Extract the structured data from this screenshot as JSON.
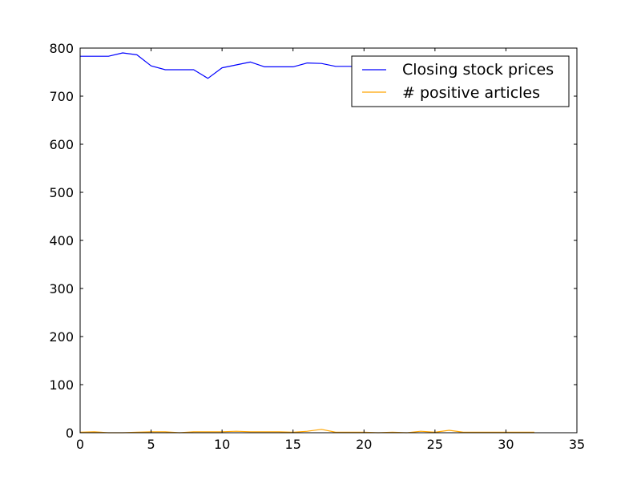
{
  "chart_data": {
    "type": "line",
    "title": "",
    "xlabel": "",
    "ylabel": "",
    "xlim": [
      0,
      35
    ],
    "ylim": [
      0,
      800
    ],
    "xticks": [
      0,
      5,
      10,
      15,
      20,
      25,
      30,
      35
    ],
    "yticks": [
      0,
      100,
      200,
      300,
      400,
      500,
      600,
      700,
      800
    ],
    "grid": false,
    "legend_position": "top-right",
    "series": [
      {
        "name": "Closing stock prices",
        "color": "#0000ff",
        "x": [
          0,
          1,
          2,
          3,
          4,
          5,
          6,
          7,
          8,
          9,
          10,
          11,
          12,
          13,
          14,
          15,
          16,
          17,
          18,
          19,
          20,
          21,
          22,
          23,
          24,
          25,
          26,
          27,
          28,
          29,
          30,
          31,
          32
        ],
        "values": [
          783,
          783,
          783,
          790,
          786,
          763,
          755,
          755,
          755,
          737,
          759,
          765,
          771,
          761,
          761,
          761,
          769,
          768,
          762,
          762,
          761,
          761,
          762,
          761,
          760,
          760,
          758,
          760,
          760,
          760,
          761,
          762,
          763
        ]
      },
      {
        "name": "# positive articles",
        "color": "#ffa500",
        "x": [
          0,
          1,
          2,
          3,
          4,
          5,
          6,
          7,
          8,
          9,
          10,
          11,
          12,
          13,
          14,
          15,
          16,
          17,
          18,
          19,
          20,
          21,
          22,
          23,
          24,
          25,
          26,
          27,
          28,
          29,
          30,
          31,
          32
        ],
        "values": [
          1,
          2,
          0,
          0,
          1,
          2,
          2,
          0,
          2,
          2,
          2,
          3,
          2,
          2,
          2,
          1,
          3,
          7,
          1,
          1,
          1,
          0,
          1,
          0,
          3,
          1,
          5,
          1,
          1,
          1,
          1,
          1,
          1
        ]
      }
    ]
  }
}
